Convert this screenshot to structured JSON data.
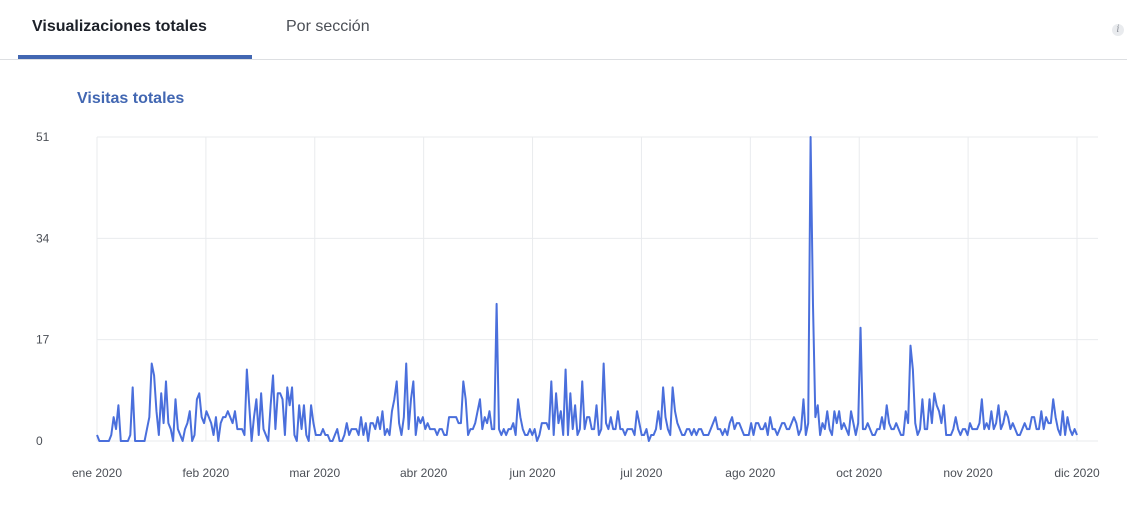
{
  "tabs": [
    {
      "label": "Visualizaciones totales",
      "active": true
    },
    {
      "label": "Por sección",
      "active": false
    }
  ],
  "info_icon": {
    "glyph": "i"
  },
  "colors": {
    "accent": "#4267b2",
    "line": "#4a6fdc",
    "grid": "#e9ebee",
    "text": "#4b4f56"
  },
  "chart_data": {
    "type": "line",
    "title": "Visitas totales",
    "xlabel": "",
    "ylabel": "",
    "ylim": [
      0,
      51
    ],
    "y_ticks": [
      0,
      17,
      34,
      51
    ],
    "x_ticks": [
      "ene 2020",
      "feb 2020",
      "mar 2020",
      "abr 2020",
      "jun 2020",
      "jul 2020",
      "ago 2020",
      "oct 2020",
      "nov 2020",
      "dic 2020"
    ],
    "x_range": [
      "2020-01-01",
      "2020-12-01"
    ],
    "grid": true,
    "series": [
      {
        "values": [
          1,
          0,
          0,
          0,
          0,
          0,
          1,
          4,
          2,
          6,
          0,
          0,
          0,
          0,
          1,
          9,
          0,
          0,
          0,
          0,
          0,
          2,
          4,
          13,
          11,
          5,
          1,
          8,
          3,
          10,
          3,
          2,
          0,
          7,
          2,
          1,
          0,
          2,
          3,
          5,
          0,
          1,
          7,
          8,
          4,
          3,
          5,
          4,
          3,
          1,
          4,
          0,
          3,
          4,
          4,
          5,
          4,
          3,
          5,
          2,
          2,
          2,
          1,
          12,
          6,
          0,
          4,
          7,
          1,
          8,
          2,
          1,
          0,
          6,
          11,
          2,
          8,
          8,
          7,
          1,
          9,
          6,
          9,
          1,
          0,
          6,
          2,
          6,
          1,
          0,
          6,
          3,
          1,
          1,
          1,
          2,
          1,
          1,
          0,
          0,
          1,
          2,
          0,
          0,
          1,
          3,
          1,
          2,
          2,
          2,
          1,
          4,
          1,
          3,
          0,
          3,
          3,
          2,
          4,
          2,
          5,
          1,
          2,
          1,
          5,
          7,
          10,
          3,
          1,
          4,
          13,
          2,
          7,
          10,
          1,
          4,
          3,
          4,
          2,
          3,
          2,
          2,
          2,
          1,
          2,
          2,
          1,
          1,
          4,
          4,
          4,
          4,
          3,
          3,
          10,
          7,
          1,
          2,
          2,
          3,
          5,
          7,
          2,
          4,
          3,
          5,
          2,
          2,
          23,
          2,
          1,
          2,
          1,
          2,
          2,
          3,
          1,
          7,
          4,
          2,
          1,
          1,
          2,
          1,
          2,
          0,
          1,
          3,
          3,
          3,
          2,
          10,
          1,
          8,
          3,
          5,
          1,
          12,
          1,
          8,
          2,
          6,
          1,
          2,
          10,
          2,
          4,
          4,
          2,
          2,
          6,
          1,
          2,
          13,
          3,
          2,
          4,
          2,
          2,
          5,
          2,
          2,
          1,
          2,
          2,
          2,
          1,
          5,
          3,
          1,
          1,
          2,
          0,
          1,
          1,
          2,
          5,
          2,
          9,
          4,
          2,
          1,
          9,
          5,
          3,
          2,
          1,
          1,
          2,
          2,
          1,
          2,
          1,
          2,
          2,
          1,
          1,
          1,
          2,
          3,
          4,
          2,
          2,
          1,
          2,
          1,
          3,
          4,
          2,
          3,
          3,
          2,
          1,
          1,
          1,
          3,
          1,
          3,
          3,
          2,
          2,
          3,
          1,
          4,
          2,
          2,
          1,
          2,
          3,
          3,
          2,
          2,
          3,
          4,
          3,
          1,
          2,
          7,
          1,
          3,
          51,
          23,
          4,
          6,
          1,
          3,
          2,
          5,
          2,
          1,
          5,
          3,
          5,
          2,
          3,
          2,
          1,
          5,
          3,
          1,
          3,
          19,
          2,
          2,
          3,
          2,
          1,
          1,
          2,
          2,
          4,
          2,
          6,
          3,
          2,
          2,
          3,
          2,
          1,
          1,
          5,
          3,
          16,
          12,
          3,
          1,
          2,
          7,
          2,
          2,
          7,
          3,
          8,
          6,
          5,
          3,
          6,
          1,
          1,
          1,
          2,
          4,
          2,
          1,
          2,
          2,
          1,
          3,
          2,
          2,
          2,
          3,
          7,
          2,
          3,
          2,
          5,
          2,
          3,
          6,
          2,
          3,
          5,
          4,
          2,
          3,
          2,
          1,
          1,
          2,
          3,
          2,
          2,
          4,
          4,
          2,
          2,
          5,
          2,
          4,
          3,
          3,
          7,
          4,
          2,
          1,
          5,
          1,
          4,
          2,
          1,
          2,
          1
        ]
      }
    ]
  }
}
